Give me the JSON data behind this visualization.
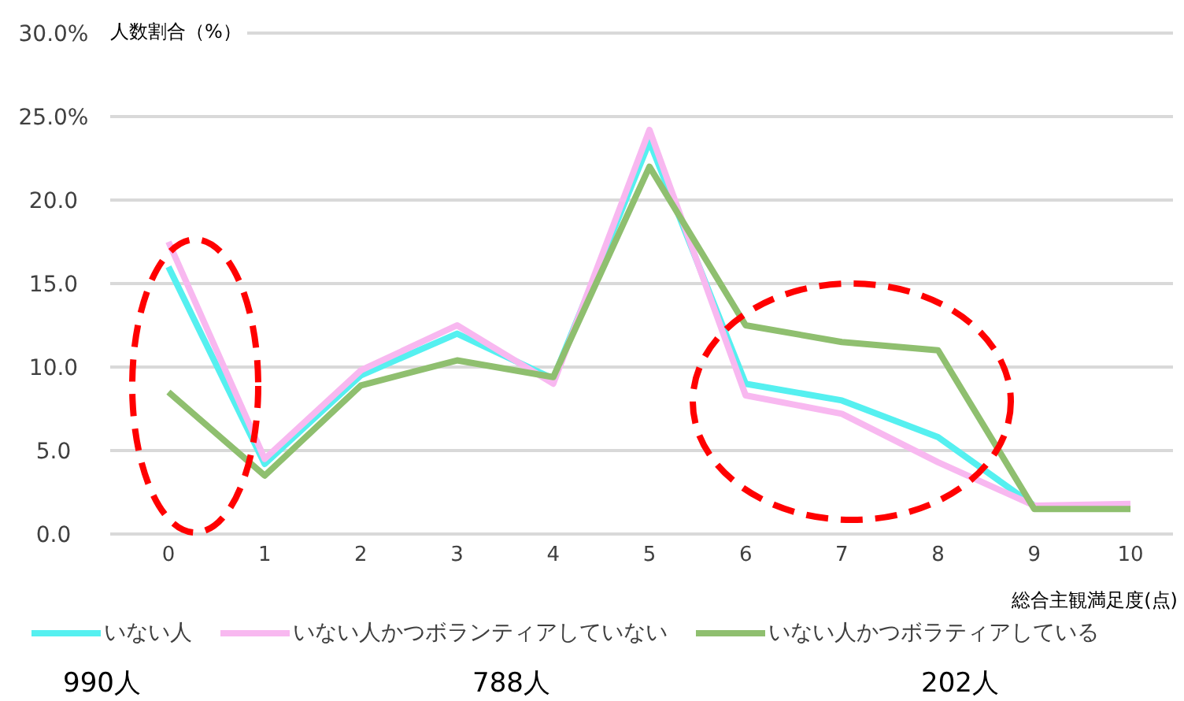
{
  "chart_data": {
    "type": "line",
    "xlabel": "総合主観満足度(点)",
    "ylabel": "人数割合（%）",
    "categories": [
      "0",
      "1",
      "2",
      "3",
      "4",
      "5",
      "6",
      "7",
      "8",
      "9",
      "10"
    ],
    "series": [
      {
        "name": "いない人",
        "color": "#55f0f0",
        "values": [
          16,
          4.2,
          9.5,
          12,
          9.3,
          23.5,
          9,
          8,
          5.8,
          1.7,
          null
        ]
      },
      {
        "name": "いない人かつボランティアしていない",
        "color": "#f8b8f0",
        "values": [
          17.5,
          4.5,
          9.8,
          12.5,
          9,
          24.2,
          8.3,
          7.2,
          4.3,
          1.7,
          1.8
        ]
      },
      {
        "name": "いない人かつボラティアしている",
        "color": "#8fbf6f",
        "values": [
          8.5,
          3.5,
          8.9,
          10.4,
          9.4,
          22,
          12.5,
          11.5,
          11,
          1.5,
          1.5
        ]
      }
    ],
    "ylim": [
      0,
      30
    ],
    "yticks": [
      {
        "value": 0,
        "label": "0.0"
      },
      {
        "value": 5,
        "label": "5.0"
      },
      {
        "value": 10,
        "label": "10.0"
      },
      {
        "value": 15,
        "label": "15.0"
      },
      {
        "value": 20,
        "label": "20.0"
      },
      {
        "value": 25,
        "label": "25.0%"
      },
      {
        "value": 30,
        "label": "30.0%"
      }
    ],
    "grid": "y",
    "legend": "bottom",
    "marker": "none",
    "line_style": "solid",
    "annotations": [
      "990人",
      "788人",
      "202人"
    ]
  }
}
